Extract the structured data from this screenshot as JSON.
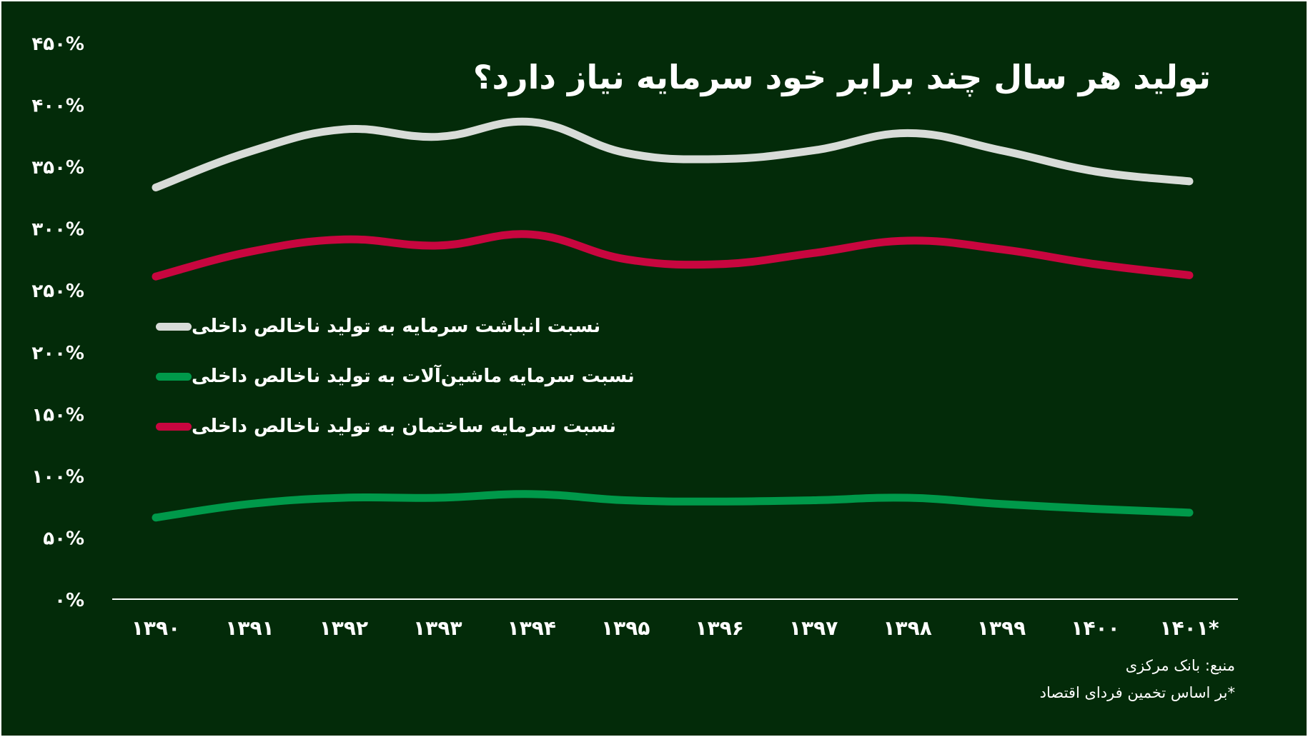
{
  "chart_data": {
    "type": "line",
    "title": "تولید هر سال چند برابر خود سرمایه نیاز دارد؟",
    "categories": [
      "۱۳۹۰",
      "۱۳۹۱",
      "۱۳۹۲",
      "۱۳۹۳",
      "۱۳۹۴",
      "۱۳۹۵",
      "۱۳۹۶",
      "۱۳۹۷",
      "۱۳۹۸",
      "۱۳۹۹",
      "۱۴۰۰",
      "۱۴۰۱*"
    ],
    "y_ticks": [
      "۰%",
      "۵۰%",
      "۱۰۰%",
      "۱۵۰%",
      "۲۰۰%",
      "۲۵۰%",
      "۳۰۰%",
      "۳۵۰%",
      "۴۰۰%",
      "۴۵۰%"
    ],
    "ylim": [
      0,
      450
    ],
    "grid": false,
    "series": [
      {
        "name": "نسبت انباشت سرمایه به تولید ناخالص داخلی",
        "color": "#d8dcd8",
        "values": [
          333,
          362,
          380,
          374,
          386,
          361,
          356,
          363,
          377,
          363,
          346,
          338
        ]
      },
      {
        "name": "نسبت سرمایه ماشین‌آلات به تولید ناخالص داخلی",
        "color": "#00994a",
        "values": [
          66,
          77,
          82,
          82,
          85,
          80,
          79,
          80,
          82,
          77,
          73,
          70
        ]
      },
      {
        "name": "نسبت سرمایه ساختمان به تولید ناخالص داخلی",
        "color": "#c8063f",
        "values": [
          261,
          281,
          291,
          286,
          295,
          275,
          271,
          280,
          290,
          283,
          271,
          262
        ]
      }
    ]
  },
  "footer": {
    "source": "منبع: بانک مرکزی",
    "note": "*بر اساس تخمین فردای اقتصاد"
  }
}
